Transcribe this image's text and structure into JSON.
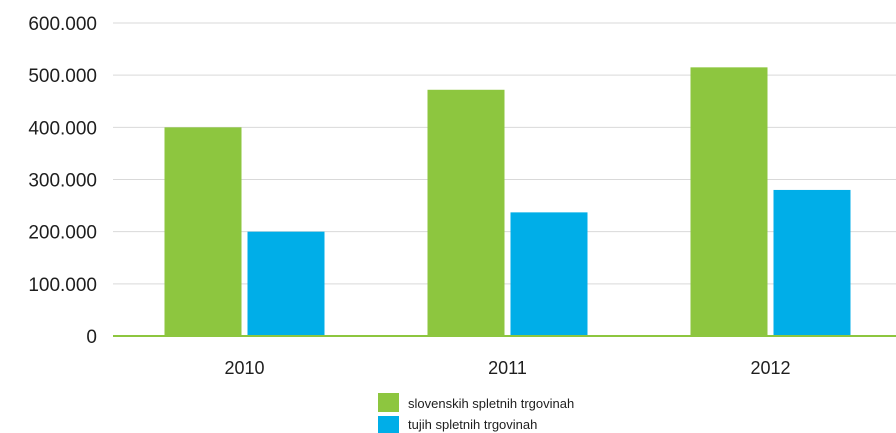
{
  "chart_data": {
    "type": "bar",
    "categories": [
      "2010",
      "2011",
      "2012"
    ],
    "series": [
      {
        "name": "slovenskih spletnih trgovinah",
        "color": "#8dc63f",
        "values": [
          400000,
          472000,
          515000
        ]
      },
      {
        "name": "tujih spletnih trgovinah",
        "color": "#00aee8",
        "values": [
          200000,
          237000,
          280000
        ]
      }
    ],
    "ylim": [
      0,
      600000
    ],
    "yticks": [
      {
        "value": 0,
        "label": "0"
      },
      {
        "value": 100000,
        "label": "100.000"
      },
      {
        "value": 200000,
        "label": "200.000"
      },
      {
        "value": 300000,
        "label": "300.000"
      },
      {
        "value": 400000,
        "label": "400.000"
      },
      {
        "value": 500000,
        "label": "500.000"
      },
      {
        "value": 600000,
        "label": "600.000"
      }
    ],
    "grid": true,
    "grid_color": "#d9d9d9",
    "axis_color": "#8dc63f",
    "legend": "bottom-center"
  }
}
